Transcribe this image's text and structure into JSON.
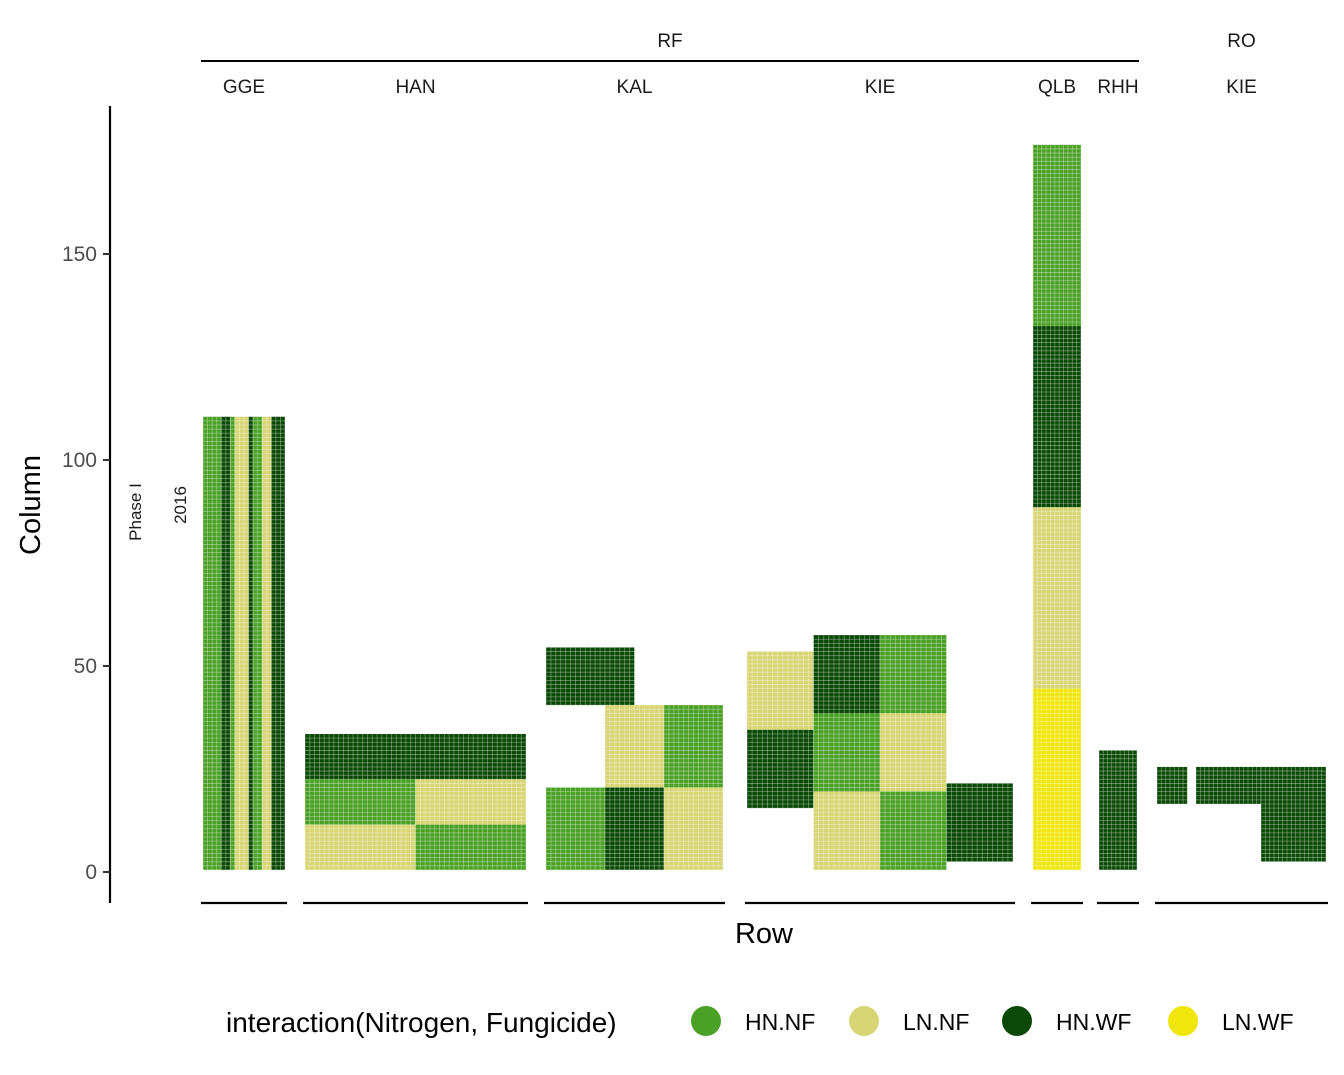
{
  "chart_data": {
    "type": "scatter",
    "title": "",
    "xlabel": "Row",
    "ylabel": "Column",
    "ylim": [
      -7,
      185
    ],
    "yticks": [
      0,
      50,
      100,
      150
    ],
    "ytick_labels": [
      "0",
      "50",
      "100",
      "150"
    ],
    "grid": false,
    "facet_rows": [
      "Phase I",
      "2016"
    ],
    "facet_groups": [
      {
        "label": "RF",
        "panels": [
          "GGE",
          "HAN",
          "KAL",
          "KIE",
          "QLB",
          "RHH"
        ]
      },
      {
        "label": "RO",
        "panels": [
          "KIE"
        ]
      }
    ],
    "legend": {
      "title": "interaction(Nitrogen, Fungicide)",
      "position": "bottom",
      "entries": [
        {
          "label": "HN.NF",
          "color": "#4aa126"
        },
        {
          "label": "LN.NF",
          "color": "#d8d574"
        },
        {
          "label": "HN.WF",
          "color": "#0b4a06"
        },
        {
          "label": "LN.WF",
          "color": "#f0e60c"
        }
      ]
    },
    "panels": [
      {
        "group": "RF",
        "label": "GGE",
        "blocks": [
          {
            "c": 0,
            "r0": 1,
            "r1": 110,
            "col0": 1,
            "col1": 4
          },
          {
            "c": 2,
            "r0": 1,
            "r1": 110,
            "col0": 5,
            "col1": 6
          },
          {
            "c": 0,
            "r0": 1,
            "r1": 110,
            "col0": 7,
            "col1": 7
          },
          {
            "c": 1,
            "r0": 1,
            "r1": 110,
            "col0": 8,
            "col1": 10
          },
          {
            "c": 2,
            "r0": 1,
            "r1": 110,
            "col0": 11,
            "col1": 11
          },
          {
            "c": 0,
            "r0": 1,
            "r1": 110,
            "col0": 12,
            "col1": 13
          },
          {
            "c": 1,
            "r0": 1,
            "r1": 110,
            "col0": 14,
            "col1": 15
          },
          {
            "c": 2,
            "r0": 1,
            "r1": 110,
            "col0": 16,
            "col1": 18
          }
        ]
      },
      {
        "group": "RF",
        "label": "HAN",
        "blocks": [
          {
            "c": 2,
            "r0": 23,
            "r1": 33,
            "col0": 1,
            "col1": 46
          },
          {
            "c": 0,
            "r0": 12,
            "r1": 22,
            "col0": 1,
            "col1": 23
          },
          {
            "c": 1,
            "r0": 12,
            "r1": 22,
            "col0": 24,
            "col1": 46
          },
          {
            "c": 1,
            "r0": 1,
            "r1": 11,
            "col0": 1,
            "col1": 23
          },
          {
            "c": 0,
            "r0": 1,
            "r1": 11,
            "col0": 24,
            "col1": 46
          }
        ]
      },
      {
        "group": "RF",
        "label": "KAL",
        "blocks": [
          {
            "c": 2,
            "r0": 41,
            "r1": 54,
            "col0": 1,
            "col1": 18
          },
          {
            "c": 1,
            "r0": 21,
            "r1": 40,
            "col0": 13,
            "col1": 24
          },
          {
            "c": 0,
            "r0": 21,
            "r1": 40,
            "col0": 25,
            "col1": 36
          },
          {
            "c": 0,
            "r0": 1,
            "r1": 20,
            "col0": 1,
            "col1": 12
          },
          {
            "c": 2,
            "r0": 1,
            "r1": 20,
            "col0": 13,
            "col1": 24
          },
          {
            "c": 1,
            "r0": 1,
            "r1": 20,
            "col0": 25,
            "col1": 36
          }
        ]
      },
      {
        "group": "RF",
        "label": "KIE",
        "blocks": [
          {
            "c": 1,
            "r0": 35,
            "r1": 53,
            "col0": 3,
            "col1": 15
          },
          {
            "c": 2,
            "r0": 16,
            "r1": 34,
            "col0": 3,
            "col1": 15
          },
          {
            "c": 2,
            "r0": 39,
            "r1": 57,
            "col0": 16,
            "col1": 28
          },
          {
            "c": 0,
            "r0": 20,
            "r1": 38,
            "col0": 16,
            "col1": 28
          },
          {
            "c": 1,
            "r0": 1,
            "r1": 19,
            "col0": 16,
            "col1": 28
          },
          {
            "c": 0,
            "r0": 39,
            "r1": 57,
            "col0": 29,
            "col1": 41
          },
          {
            "c": 1,
            "r0": 20,
            "r1": 38,
            "col0": 29,
            "col1": 41
          },
          {
            "c": 0,
            "r0": 1,
            "r1": 19,
            "col0": 29,
            "col1": 41
          },
          {
            "c": 2,
            "r0": 3,
            "r1": 21,
            "col0": 42,
            "col1": 54
          }
        ]
      },
      {
        "group": "RF",
        "label": "QLB",
        "blocks": [
          {
            "c": 0,
            "r0": 133,
            "r1": 176,
            "col0": 1,
            "col1": 11
          },
          {
            "c": 2,
            "r0": 89,
            "r1": 132,
            "col0": 1,
            "col1": 11
          },
          {
            "c": 1,
            "r0": 45,
            "r1": 88,
            "col0": 1,
            "col1": 11
          },
          {
            "c": 3,
            "r0": 1,
            "r1": 44,
            "col0": 1,
            "col1": 11
          }
        ]
      },
      {
        "group": "RF",
        "label": "RHH",
        "blocks": [
          {
            "c": 2,
            "r0": 1,
            "r1": 29,
            "col0": 1,
            "col1": 9
          }
        ]
      },
      {
        "group": "RO",
        "label": "KIE",
        "blocks": [
          {
            "c": 2,
            "r0": 17,
            "r1": 25,
            "col0": 1,
            "col1": 7
          },
          {
            "c": 2,
            "r0": 17,
            "r1": 25,
            "col0": 10,
            "col1": 24
          },
          {
            "c": 2,
            "r0": 3,
            "r1": 25,
            "col0": 25,
            "col1": 39
          }
        ]
      }
    ]
  }
}
